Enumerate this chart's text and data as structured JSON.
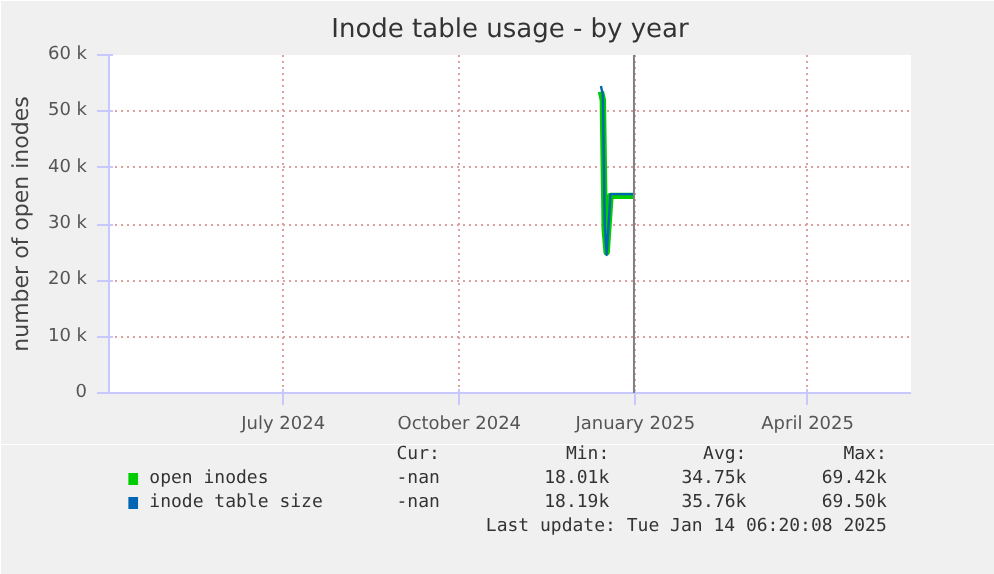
{
  "chart_data": {
    "type": "line",
    "title": "Inode table usage - by year",
    "ylabel": "number of open inodes",
    "xlim": [
      "2024-04-15",
      "2025-06-08"
    ],
    "xticks": [
      {
        "value": "2024-07-15",
        "label": "July 2024"
      },
      {
        "value": "2024-10-15",
        "label": "October 2024"
      },
      {
        "value": "2025-01-15",
        "label": "January 2025"
      },
      {
        "value": "2025-04-15",
        "label": "April 2025"
      }
    ],
    "ylim": [
      0,
      60000
    ],
    "yticks": [
      {
        "value": 0,
        "label": "0"
      },
      {
        "value": 10000,
        "label": "10 k"
      },
      {
        "value": 20000,
        "label": "20 k"
      },
      {
        "value": 30000,
        "label": "30 k"
      },
      {
        "value": 40000,
        "label": "40 k"
      },
      {
        "value": 50000,
        "label": "50 k"
      },
      {
        "value": 60000,
        "label": "60 k"
      }
    ],
    "series": [
      {
        "name": "open inodes",
        "color": "#00cc00",
        "x": [
          "2024-12-28",
          "2024-12-29",
          "2024-12-30",
          "2024-12-31",
          "2025-01-02",
          "2025-01-14"
        ],
        "values": [
          53500,
          52000,
          29000,
          25000,
          35000,
          35000
        ]
      },
      {
        "name": "inode table size",
        "color": "#0066b3",
        "x": [
          "2024-12-28",
          "2024-12-29",
          "2024-12-30",
          "2024-12-31",
          "2025-01-02",
          "2025-01-14"
        ],
        "values": [
          54500,
          53000,
          30000,
          24500,
          35300,
          35300
        ]
      }
    ],
    "ref_lines": [
      {
        "axis": "x",
        "value": "2025-01-14T06:20",
        "label": null,
        "color": "#808080"
      }
    ],
    "grid": true,
    "legend": "bottom",
    "line_style": "solid",
    "marker": "none",
    "annotations": [
      "Cur:",
      "Min:",
      "Avg:",
      "Max:",
      "-nan",
      "18.01k",
      "34.75k",
      "69.42k",
      "-nan",
      "18.19k",
      "35.76k",
      "69.50k",
      "Last update: Tue Jan 14 06:20:08 2025"
    ]
  }
}
